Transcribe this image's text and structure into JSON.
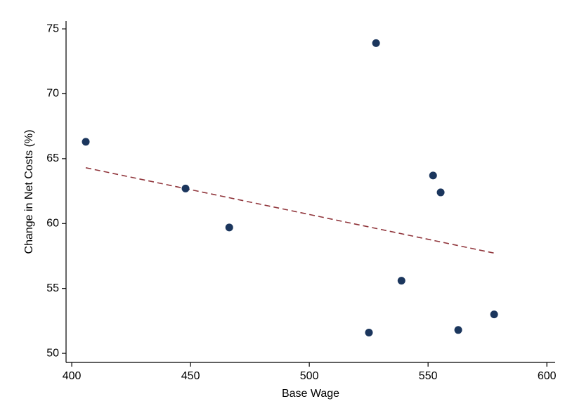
{
  "chart_data": {
    "type": "scatter",
    "x_label": "Base Wage",
    "y_label": "Change in Net Costs (%)",
    "xlim": [
      397.6,
      603.5
    ],
    "ylim": [
      49.3,
      75.6
    ],
    "xticks": [
      400,
      450,
      500,
      550,
      600
    ],
    "yticks": [
      50,
      55,
      60,
      65,
      70,
      75
    ],
    "grid": false,
    "series": [
      {
        "color": "#1b365d",
        "x": [
          405.9,
          447.9,
          466.3,
          528.1,
          525.1,
          538.8,
          552.1,
          555.3,
          562.7,
          577.8
        ],
        "values": [
          66.3,
          62.7,
          59.7,
          73.9,
          51.6,
          55.6,
          63.7,
          62.4,
          51.8,
          53.0
        ]
      }
    ],
    "fit": {
      "color": "#90353b",
      "x": [
        405.9,
        578.4
      ],
      "values": [
        64.3,
        57.7
      ]
    }
  }
}
